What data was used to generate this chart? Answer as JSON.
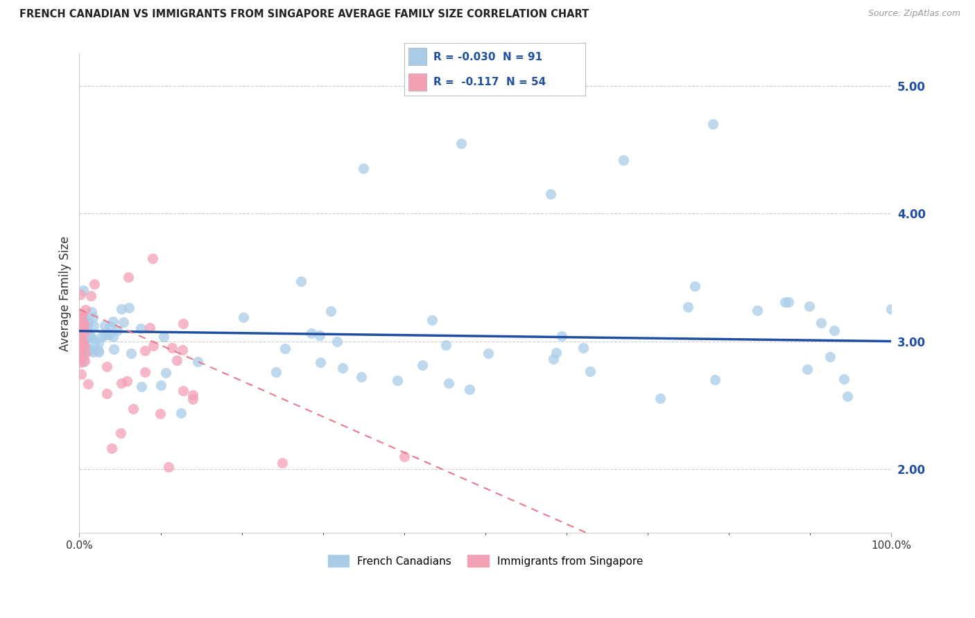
{
  "title": "FRENCH CANADIAN VS IMMIGRANTS FROM SINGAPORE AVERAGE FAMILY SIZE CORRELATION CHART",
  "source": "Source: ZipAtlas.com",
  "ylabel": "Average Family Size",
  "legend_label1": "French Canadians",
  "legend_label2": "Immigrants from Singapore",
  "R1": "-0.030",
  "N1": "91",
  "R2": "-0.117",
  "N2": "54",
  "blue_scatter_color": "#a8cce8",
  "pink_scatter_color": "#f4a0b5",
  "blue_line_color": "#1e4fa0",
  "pink_line_color": "#e8788a",
  "tick_color": "#1e4fa0",
  "title_color": "#222222",
  "source_color": "#999999",
  "legend_text_color": "#1e4fa0",
  "grid_color": "#cccccc",
  "ymin": 1.5,
  "ymax": 5.25,
  "xmin": 0.0,
  "xmax": 1.0,
  "yticks": [
    2.0,
    3.0,
    4.0,
    5.0
  ],
  "blue_trend_intercept": 3.08,
  "blue_trend_slope": -0.08,
  "pink_trend_intercept": 3.25,
  "pink_trend_slope": -2.8
}
